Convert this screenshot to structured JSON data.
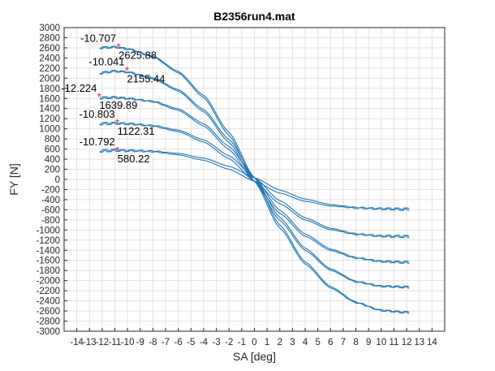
{
  "chart_data": {
    "type": "line",
    "title": "B2356run4.mat",
    "xlabel": "SA [deg]",
    "ylabel": "FY [N]",
    "xlim": [
      -15,
      15
    ],
    "ylim": [
      -3000,
      3000
    ],
    "xticks": [
      -14,
      -13,
      -12,
      -11,
      -10,
      -9,
      -8,
      -7,
      -6,
      -5,
      -4,
      -3,
      -2,
      -1,
      0,
      1,
      2,
      3,
      4,
      5,
      6,
      7,
      8,
      9,
      10,
      11,
      12,
      13,
      14
    ],
    "yticks": [
      -3000,
      -2800,
      -2600,
      -2400,
      -2200,
      -2000,
      -1800,
      -1600,
      -1400,
      -1200,
      -1000,
      -800,
      -600,
      -400,
      -200,
      0,
      200,
      400,
      600,
      800,
      1000,
      1200,
      1400,
      1600,
      1800,
      2000,
      2200,
      2400,
      2600,
      2800,
      3000
    ],
    "grid": true,
    "line_color": "#1f77b4",
    "marker_color": "#e0303a",
    "series": [
      {
        "x": [
          -12.2,
          -11.0,
          -10.0,
          -8.0,
          -6.0,
          -4.0,
          -2.0,
          0.0,
          2.0,
          4.0,
          6.0,
          8.0,
          10.0,
          12.2
        ],
        "y": [
          2600,
          2615,
          2580,
          2430,
          2120,
          1640,
          900,
          0,
          -930,
          -1650,
          -2130,
          -2430,
          -2590,
          -2630
        ]
      },
      {
        "x": [
          -12.2,
          -11.0,
          -10.0,
          -8.0,
          -6.0,
          -4.0,
          -2.0,
          0.0,
          2.0,
          4.0,
          6.0,
          8.0,
          10.0,
          12.2
        ],
        "y": [
          2100,
          2140,
          2120,
          2000,
          1760,
          1360,
          760,
          0,
          -780,
          -1380,
          -1780,
          -2020,
          -2110,
          -2130
        ]
      },
      {
        "x": [
          -12.2,
          -11.0,
          -10.0,
          -8.0,
          -6.0,
          -4.0,
          -2.0,
          0.0,
          2.0,
          4.0,
          6.0,
          8.0,
          10.0,
          12.2
        ],
        "y": [
          1610,
          1620,
          1600,
          1540,
          1380,
          1080,
          620,
          0,
          -640,
          -1100,
          -1390,
          -1550,
          -1620,
          -1640
        ]
      },
      {
        "x": [
          -12.2,
          -11.0,
          -10.0,
          -8.0,
          -6.0,
          -4.0,
          -2.0,
          0.0,
          2.0,
          4.0,
          6.0,
          8.0,
          10.0,
          12.2
        ],
        "y": [
          1100,
          1110,
          1100,
          1060,
          960,
          760,
          440,
          0,
          -450,
          -780,
          -980,
          -1080,
          -1120,
          -1130
        ]
      },
      {
        "x": [
          -12.2,
          -11.0,
          -10.0,
          -8.0,
          -6.0,
          -4.0,
          -2.0,
          0.0,
          2.0,
          4.0,
          6.0,
          8.0,
          10.0,
          12.2
        ],
        "y": [
          560,
          575,
          570,
          555,
          500,
          400,
          230,
          0,
          -240,
          -410,
          -510,
          -560,
          -580,
          -590
        ]
      }
    ],
    "annotations": [
      {
        "x": -10.707,
        "y": 2625.88,
        "x_label": "-10.707",
        "y_label": "2625.88"
      },
      {
        "x": -10.041,
        "y": 2155.44,
        "x_label": "-10.041",
        "y_label": "2155.44"
      },
      {
        "x": -12.224,
        "y": 1639.89,
        "x_label": "-12.224",
        "y_label": "1639.89"
      },
      {
        "x": -10.803,
        "y": 1122.31,
        "x_label": "-10.803",
        "y_label": "1122.31"
      },
      {
        "x": -10.792,
        "y": 580.22,
        "x_label": "-10.792",
        "y_label": "580.22"
      }
    ]
  }
}
